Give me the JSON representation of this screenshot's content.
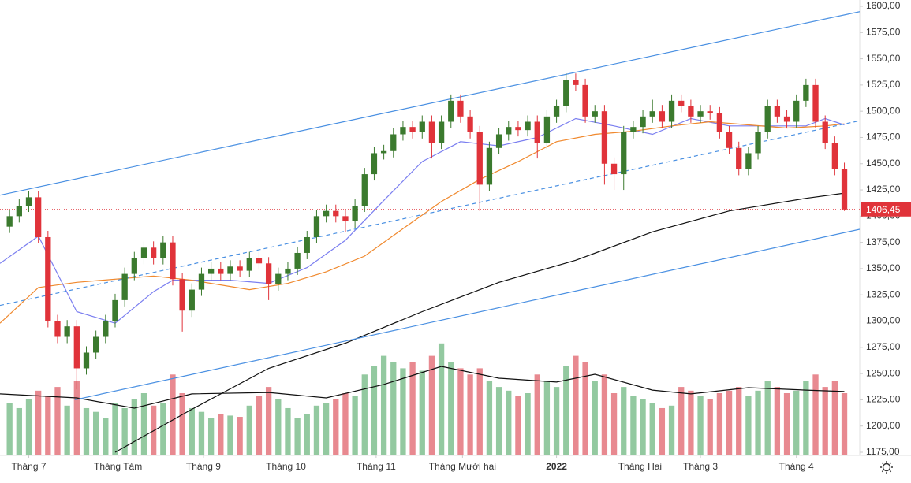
{
  "chart_data": {
    "type": "candlestick",
    "xlim": [
      0,
      89.6
    ],
    "ylim": [
      1175,
      1600
    ],
    "y2lim": [
      0,
      1000
    ],
    "xticks": [
      {
        "value": 3,
        "label": "Tháng 7"
      },
      {
        "value": 12.3,
        "label": "Tháng Tám"
      },
      {
        "value": 21.2,
        "label": "Tháng 9"
      },
      {
        "value": 29.8,
        "label": "Tháng 10"
      },
      {
        "value": 39.2,
        "label": "Tháng 11"
      },
      {
        "value": 48.2,
        "label": "Tháng Mười hai"
      },
      {
        "value": 58,
        "label": "2022"
      },
      {
        "value": 66.7,
        "label": "Tháng Hai"
      },
      {
        "value": 73,
        "label": "Tháng 3"
      },
      {
        "value": 83,
        "label": "Tháng 4"
      }
    ],
    "yticks": [
      {
        "value": 1175,
        "label": "1175,00"
      },
      {
        "value": 1200,
        "label": "1200,00"
      },
      {
        "value": 1225,
        "label": "1225,00"
      },
      {
        "value": 1250,
        "label": "1250,00"
      },
      {
        "value": 1275,
        "label": "1275,00"
      },
      {
        "value": 1300,
        "label": "1300,00"
      },
      {
        "value": 1325,
        "label": "1325,00"
      },
      {
        "value": 1350,
        "label": "1350,00"
      },
      {
        "value": 1375,
        "label": "1375,00"
      },
      {
        "value": 1400,
        "label": "1400,00"
      },
      {
        "value": 1425,
        "label": "1425,00"
      },
      {
        "value": 1450,
        "label": "1450,00"
      },
      {
        "value": 1475,
        "label": "1475,00"
      },
      {
        "value": 1500,
        "label": "1500,00"
      },
      {
        "value": 1525,
        "label": "1525,00"
      },
      {
        "value": 1550,
        "label": "1550,00"
      },
      {
        "value": 1575,
        "label": "1575,00"
      },
      {
        "value": 1600,
        "label": "1600,00"
      }
    ],
    "up_color": "#3b7a2e",
    "down_color": "#e0333a",
    "volume_up_color": "#93c9a0",
    "volume_down_color": "#e88990",
    "open": [
      1390,
      1400,
      1410,
      1418,
      1380,
      1300,
      1285,
      1295,
      1255,
      1270,
      1285,
      1300,
      1320,
      1345,
      1360,
      1370,
      1360,
      1375,
      1340,
      1310,
      1330,
      1345,
      1350,
      1345,
      1352,
      1348,
      1360,
      1355,
      1335,
      1345,
      1350,
      1365,
      1380,
      1400,
      1405,
      1400,
      1395,
      1410,
      1440,
      1460,
      1462,
      1478,
      1485,
      1480,
      1490,
      1470,
      1490,
      1510,
      1495,
      1480,
      1430,
      1465,
      1478,
      1485,
      1482,
      1490,
      1470,
      1495,
      1505,
      1530,
      1525,
      1495,
      1500,
      1450,
      1440,
      1480,
      1485,
      1495,
      1500,
      1490,
      1510,
      1505,
      1495,
      1500,
      1498,
      1480,
      1465,
      1445,
      1460,
      1480,
      1505,
      1495,
      1490,
      1510,
      1525,
      1490,
      1470,
      1445
    ],
    "high": [
      1406,
      1416,
      1424,
      1424,
      1386,
      1306,
      1301,
      1301,
      1276,
      1291,
      1306,
      1326,
      1351,
      1366,
      1376,
      1376,
      1381,
      1381,
      1346,
      1336,
      1351,
      1356,
      1356,
      1358,
      1358,
      1366,
      1366,
      1361,
      1351,
      1356,
      1371,
      1386,
      1406,
      1411,
      1411,
      1406,
      1416,
      1446,
      1466,
      1468,
      1484,
      1491,
      1491,
      1496,
      1496,
      1496,
      1516,
      1516,
      1501,
      1486,
      1471,
      1484,
      1491,
      1491,
      1496,
      1496,
      1501,
      1511,
      1536,
      1536,
      1531,
      1506,
      1506,
      1456,
      1486,
      1491,
      1501,
      1511,
      1506,
      1516,
      1516,
      1511,
      1506,
      1506,
      1504,
      1486,
      1471,
      1466,
      1486,
      1511,
      1511,
      1501,
      1516,
      1531,
      1531,
      1496,
      1476,
      1451
    ],
    "low": [
      1384,
      1394,
      1404,
      1374,
      1294,
      1279,
      1279,
      1235,
      1249,
      1264,
      1279,
      1294,
      1314,
      1339,
      1354,
      1354,
      1354,
      1334,
      1290,
      1304,
      1324,
      1339,
      1339,
      1339,
      1342,
      1342,
      1349,
      1320,
      1329,
      1339,
      1344,
      1359,
      1374,
      1394,
      1394,
      1385,
      1389,
      1404,
      1434,
      1454,
      1456,
      1472,
      1474,
      1474,
      1455,
      1464,
      1484,
      1489,
      1474,
      1405,
      1424,
      1459,
      1472,
      1476,
      1476,
      1455,
      1464,
      1489,
      1499,
      1519,
      1489,
      1489,
      1430,
      1425,
      1425,
      1474,
      1479,
      1489,
      1484,
      1484,
      1499,
      1489,
      1489,
      1492,
      1474,
      1459,
      1439,
      1439,
      1454,
      1474,
      1489,
      1484,
      1484,
      1504,
      1484,
      1464,
      1439,
      1405
    ],
    "close": [
      1400,
      1410,
      1418,
      1380,
      1300,
      1285,
      1295,
      1255,
      1270,
      1285,
      1300,
      1320,
      1345,
      1360,
      1370,
      1360,
      1375,
      1340,
      1310,
      1330,
      1345,
      1350,
      1345,
      1352,
      1348,
      1360,
      1355,
      1335,
      1345,
      1350,
      1365,
      1380,
      1400,
      1405,
      1400,
      1395,
      1410,
      1440,
      1460,
      1462,
      1478,
      1485,
      1480,
      1490,
      1470,
      1490,
      1510,
      1495,
      1480,
      1430,
      1465,
      1478,
      1485,
      1482,
      1490,
      1470,
      1495,
      1505,
      1530,
      1525,
      1495,
      1500,
      1450,
      1440,
      1480,
      1485,
      1495,
      1500,
      1490,
      1510,
      1505,
      1495,
      1500,
      1498,
      1480,
      1465,
      1445,
      1460,
      1480,
      1505,
      1495,
      1490,
      1510,
      1525,
      1490,
      1470,
      1445,
      1406.45
    ],
    "volume": [
      420,
      380,
      450,
      520,
      480,
      550,
      400,
      600,
      380,
      350,
      300,
      420,
      380,
      450,
      500,
      400,
      420,
      650,
      500,
      380,
      350,
      300,
      330,
      320,
      310,
      400,
      480,
      550,
      450,
      380,
      300,
      330,
      400,
      420,
      450,
      500,
      480,
      650,
      720,
      800,
      750,
      700,
      750,
      680,
      800,
      900,
      750,
      700,
      650,
      700,
      600,
      550,
      520,
      480,
      500,
      650,
      600,
      550,
      720,
      800,
      750,
      600,
      650,
      500,
      550,
      480,
      450,
      420,
      380,
      400,
      550,
      520,
      480,
      450,
      500,
      520,
      550,
      480,
      520,
      600,
      550,
      500,
      520,
      600,
      650,
      550,
      600,
      500
    ],
    "lines": [
      {
        "color": "#7b7ff0",
        "x": [
          0,
          4,
          8,
          12,
          16,
          18,
          24,
          28,
          32,
          36,
          40,
          44,
          48,
          52,
          56,
          60,
          64,
          68,
          72,
          76,
          80,
          84,
          86,
          88
        ],
        "values": [
          1355,
          1381,
          1309,
          1298,
          1328,
          1339,
          1339,
          1336,
          1351,
          1377,
          1415,
          1452,
          1471,
          1467,
          1475,
          1493,
          1486,
          1478,
          1493,
          1486,
          1486,
          1486,
          1493,
          1487
        ]
      },
      {
        "color": "#f0892e",
        "x": [
          0,
          4,
          8,
          16,
          20,
          26,
          30,
          34,
          38,
          42,
          46,
          50,
          54,
          58,
          62,
          66,
          70,
          74,
          78,
          82,
          86,
          88
        ],
        "values": [
          1298,
          1332,
          1337,
          1343,
          1339,
          1330,
          1336,
          1347,
          1362,
          1388,
          1414,
          1435,
          1452,
          1471,
          1478,
          1481,
          1486,
          1490,
          1487,
          1484,
          1486,
          1488
        ]
      },
      {
        "color": "#111111",
        "x": [
          12,
          20,
          28,
          36,
          44,
          52,
          60,
          68,
          76,
          84,
          88
        ],
        "values": [
          1175,
          1216,
          1255,
          1279,
          1309,
          1337,
          1358,
          1385,
          1405,
          1417,
          1422
        ]
      },
      {
        "color": "#4a90e2",
        "x": [
          0,
          89.6
        ],
        "values": [
          1420,
          1595
        ]
      },
      {
        "color": "#4a90e2",
        "x": [
          7.8,
          89.6
        ],
        "values": [
          1225,
          1387.5
        ]
      },
      {
        "color": "#4a90e2",
        "dashed": true,
        "x": [
          0,
          89.6
        ],
        "values": [
          1315,
          1491
        ]
      }
    ],
    "volume_ma": {
      "color": "#111111",
      "x": [
        0,
        8,
        14,
        20,
        28,
        34,
        40,
        46,
        52,
        58,
        62,
        68,
        72,
        78,
        84,
        88
      ],
      "values": [
        494,
        462,
        380,
        494,
        506,
        462,
        570,
        715,
        620,
        589,
        652,
        525,
        494,
        544,
        525,
        513
      ]
    },
    "last_price": {
      "value": 1406.45,
      "label": "1406,45",
      "color": "#e0333a"
    }
  }
}
